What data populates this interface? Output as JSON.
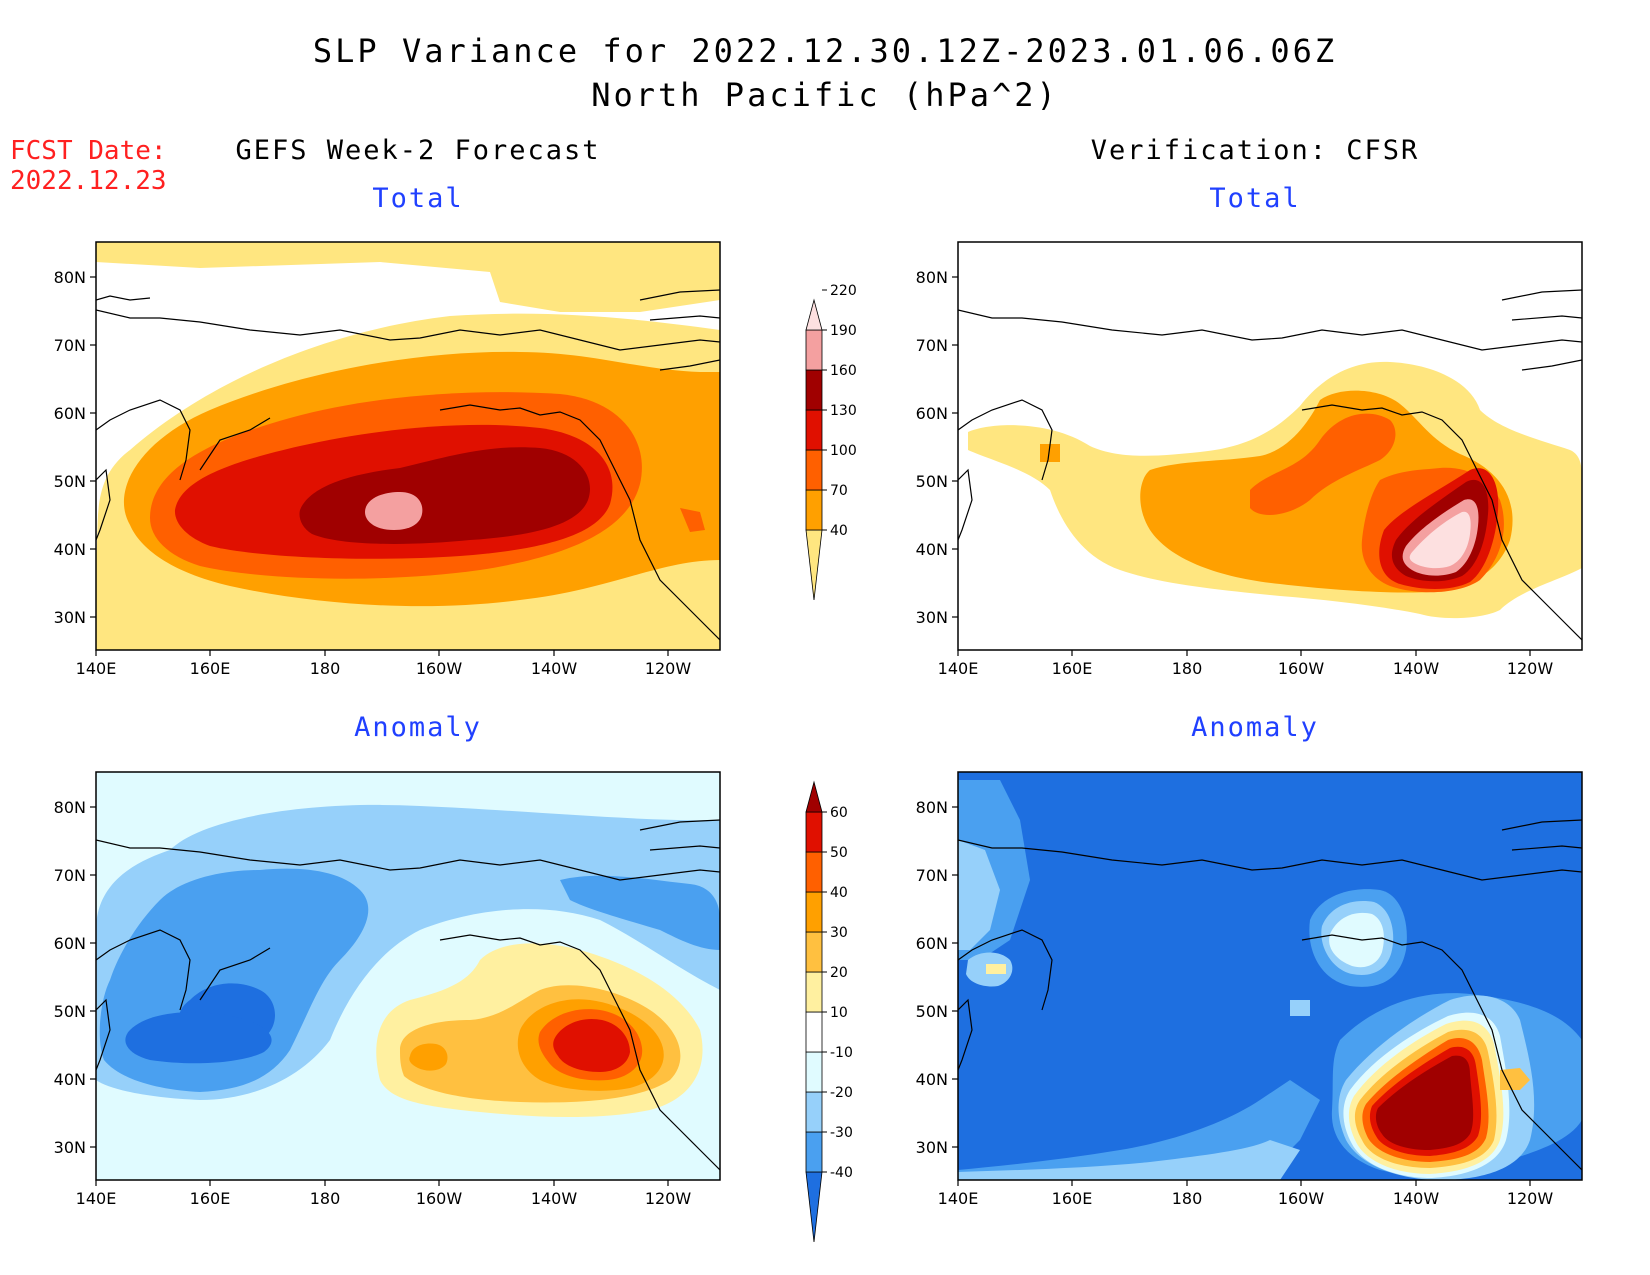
{
  "title": {
    "line1": "SLP Variance for 2022.12.30.12Z-2023.01.06.06Z",
    "line2": "North Pacific (hPa^2)"
  },
  "fcst": {
    "label": "FCST Date:",
    "date": "2022.12.23"
  },
  "columns": {
    "left": "GEFS Week-2 Forecast",
    "right": "Verification: CFSR"
  },
  "panels": {
    "top_left": {
      "subtitle": "Total"
    },
    "top_right": {
      "subtitle": "Total"
    },
    "bottom_left": {
      "subtitle": "Anomaly"
    },
    "bottom_right": {
      "subtitle": "Anomaly"
    }
  },
  "axes": {
    "lat_ticks": [
      "80N",
      "70N",
      "60N",
      "50N",
      "40N",
      "30N"
    ],
    "lon_ticks": [
      "140E",
      "160E",
      "180",
      "160W",
      "140W",
      "120W"
    ]
  },
  "colorbars": {
    "total": {
      "levels": [
        "40",
        "70",
        "100",
        "130",
        "160",
        "190",
        "220"
      ],
      "colors": [
        "#ffe680",
        "#ffa000",
        "#ff6000",
        "#e01000",
        "#a00000",
        "#f4a0a0",
        "#fde0e0"
      ]
    },
    "anomaly": {
      "levels": [
        "-40",
        "-30",
        "-20",
        "-10",
        "10",
        "20",
        "30",
        "40",
        "50",
        "60"
      ],
      "colors": [
        "#1e6fe0",
        "#4aa0f0",
        "#96d0fa",
        "#e0fbff",
        "#ffffff",
        "#fff0a0",
        "#ffc040",
        "#ffa000",
        "#ff6000",
        "#e01000",
        "#a00000"
      ]
    }
  }
}
